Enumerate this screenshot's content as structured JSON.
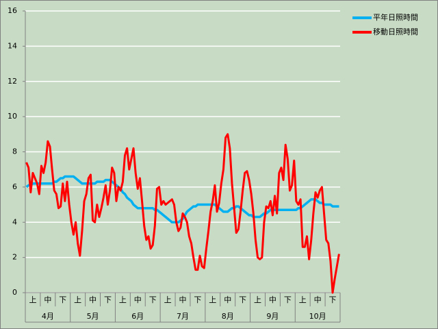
{
  "chart_data": {
    "type": "line",
    "categories": [
      null,
      null,
      null,
      "上",
      null,
      null,
      null,
      null,
      null,
      null,
      "中",
      null,
      null,
      null,
      null,
      null,
      null,
      "下",
      null,
      null,
      null,
      null,
      null,
      null,
      "上",
      null,
      null,
      null,
      null,
      null,
      null,
      "中",
      null,
      null,
      null,
      null,
      null,
      null,
      "下",
      null,
      null,
      null,
      null,
      null,
      null,
      "上",
      null,
      null,
      null,
      null,
      null,
      null,
      "中",
      null,
      null,
      null,
      null,
      null,
      null,
      "下",
      null,
      null,
      null,
      null,
      null,
      null,
      "上",
      null,
      null,
      null,
      null,
      null,
      null,
      "中",
      null,
      null,
      null,
      null,
      null,
      null,
      "下",
      null,
      null,
      null,
      null,
      null,
      null,
      "上",
      null,
      null,
      null,
      null,
      null,
      null,
      "中",
      null,
      null,
      null,
      null,
      null,
      null,
      "下",
      null,
      null,
      null,
      null,
      null,
      null,
      "上",
      null,
      null,
      null,
      null,
      null,
      null,
      "中",
      null,
      null,
      null,
      null,
      null,
      null,
      "下",
      null,
      null,
      null,
      null,
      null,
      null,
      "上",
      null,
      null,
      null,
      null,
      null,
      null,
      "中",
      null,
      null,
      null,
      null,
      null,
      null,
      "下",
      null,
      null,
      null
    ],
    "x_groups": [
      "4月",
      "5月",
      "6月",
      "7月",
      "8月",
      "9月",
      "10月"
    ],
    "series": [
      {
        "name": "平年日照時間",
        "color": "#00b0f0",
        "values": [
          6.0,
          6.1,
          6.1,
          6.2,
          6.2,
          6.2,
          6.2,
          6.2,
          6.2,
          6.2,
          6.2,
          6.2,
          6.2,
          6.3,
          6.3,
          6.4,
          6.5,
          6.5,
          6.6,
          6.6,
          6.6,
          6.6,
          6.6,
          6.5,
          6.4,
          6.3,
          6.2,
          6.2,
          6.2,
          6.2,
          6.2,
          6.2,
          6.2,
          6.3,
          6.3,
          6.3,
          6.3,
          6.4,
          6.4,
          6.4,
          6.3,
          6.2,
          6.1,
          6.0,
          5.9,
          5.7,
          5.6,
          5.4,
          5.3,
          5.2,
          5.0,
          4.9,
          4.8,
          4.8,
          4.8,
          4.8,
          4.8,
          4.8,
          4.8,
          4.8,
          4.7,
          4.7,
          4.6,
          4.5,
          4.4,
          4.3,
          4.2,
          4.1,
          4.0,
          4.0,
          4.0,
          4.0,
          4.1,
          4.2,
          4.4,
          4.6,
          4.7,
          4.8,
          4.9,
          4.9,
          5.0,
          5.0,
          5.0,
          5.0,
          5.0,
          5.0,
          5.0,
          5.0,
          5.0,
          4.9,
          4.8,
          4.7,
          4.6,
          4.6,
          4.6,
          4.7,
          4.8,
          4.8,
          4.9,
          4.9,
          4.8,
          4.7,
          4.6,
          4.5,
          4.4,
          4.4,
          4.3,
          4.3,
          4.3,
          4.3,
          4.4,
          4.5,
          4.5,
          4.6,
          4.7,
          4.7,
          4.7,
          4.7,
          4.7,
          4.7,
          4.7,
          4.7,
          4.7,
          4.7,
          4.7,
          4.7,
          4.7,
          4.8,
          4.8,
          4.9,
          5.0,
          5.1,
          5.2,
          5.3,
          5.3,
          5.3,
          5.2,
          5.1,
          5.1,
          5.0,
          5.0,
          5.0,
          5.0,
          4.9,
          4.9,
          4.9,
          4.9
        ]
      },
      {
        "name": "移動日照時間",
        "color": "#ff0000",
        "values": [
          7.4,
          7.1,
          5.7,
          6.8,
          6.5,
          6.2,
          5.6,
          7.2,
          6.8,
          7.4,
          8.6,
          8.3,
          7.0,
          5.8,
          5.6,
          4.8,
          4.9,
          6.2,
          5.2,
          6.3,
          5.0,
          4.0,
          3.3,
          4.0,
          2.8,
          2.1,
          3.5,
          5.2,
          5.6,
          6.5,
          6.7,
          4.1,
          4.0,
          5.0,
          4.3,
          4.8,
          5.4,
          6.1,
          5.0,
          5.8,
          7.1,
          6.8,
          5.2,
          6.0,
          5.8,
          6.3,
          7.8,
          8.2,
          7.0,
          7.6,
          8.2,
          6.8,
          5.9,
          6.5,
          5.2,
          3.8,
          3.0,
          3.2,
          2.5,
          2.7,
          3.8,
          5.9,
          6.0,
          5.0,
          5.2,
          5.0,
          5.1,
          5.2,
          5.3,
          5.0,
          4.0,
          3.5,
          3.7,
          4.5,
          4.3,
          4.0,
          3.2,
          2.8,
          2.0,
          1.3,
          1.3,
          2.1,
          1.5,
          1.4,
          2.5,
          3.5,
          4.6,
          5.2,
          6.1,
          4.6,
          5.1,
          6.2,
          7.0,
          8.8,
          9.0,
          8.2,
          6.2,
          4.8,
          3.4,
          3.6,
          4.6,
          5.8,
          6.8,
          6.9,
          6.4,
          5.6,
          4.5,
          3.0,
          2.0,
          1.9,
          2.0,
          4.0,
          4.9,
          4.8,
          5.2,
          4.4,
          5.5,
          4.5,
          6.8,
          7.1,
          6.4,
          8.4,
          7.6,
          5.8,
          6.1,
          7.5,
          5.2,
          5.0,
          5.3,
          2.6,
          2.6,
          3.2,
          1.9,
          3.0,
          4.5,
          5.7,
          5.4,
          5.8,
          6.0,
          4.5,
          3.0,
          2.8,
          1.8,
          0.0,
          0.8,
          1.5,
          2.2
        ]
      }
    ],
    "ylim": [
      0,
      16
    ],
    "yticks": [
      0,
      2,
      4,
      6,
      8,
      10,
      12,
      14,
      16
    ],
    "grid": true,
    "legend": "right"
  }
}
